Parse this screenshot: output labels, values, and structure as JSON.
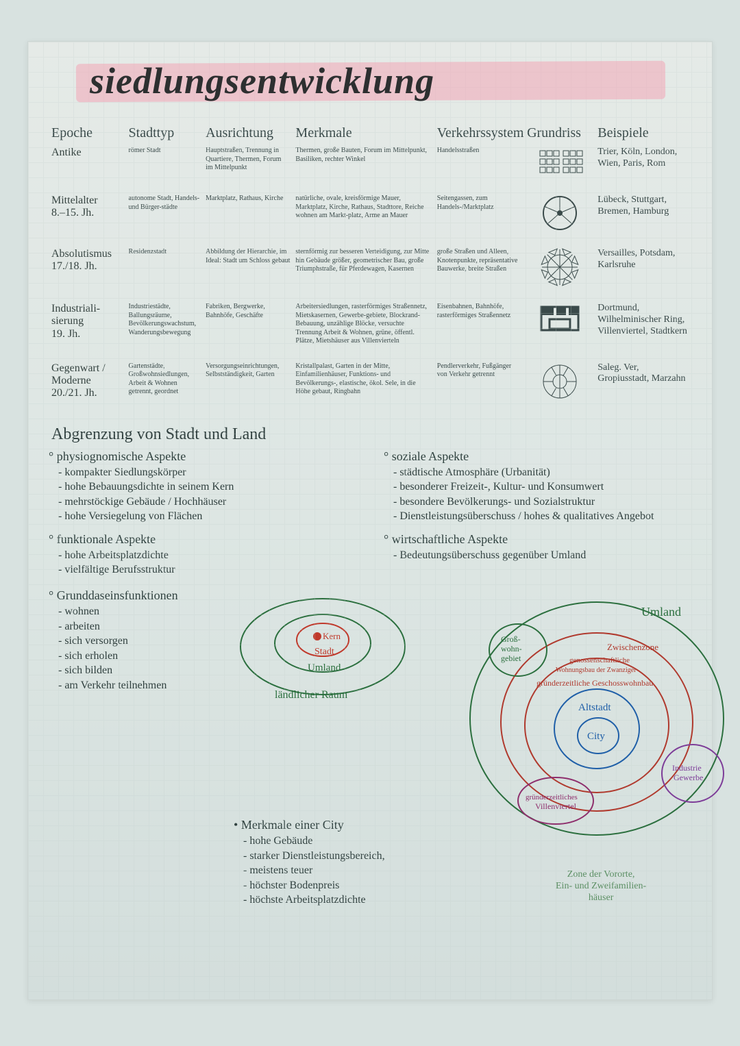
{
  "title": "siedlungsentwicklung",
  "highlight_color": "#f2a6b6",
  "columns": [
    "Epoche",
    "Stadttyp",
    "Ausrichtung",
    "Merkmale",
    "Verkehrssystem",
    "Grundriss",
    "Beispiele"
  ],
  "rows": [
    {
      "epoche": "Antike",
      "stadttyp": "römer Stadt",
      "ausrichtung": "Hauptstraßen, Trennung in Quartiere, Thermen, Forum im Mittelpunkt",
      "merkmale": "Thermen, große Bauten, Forum im Mittelpunkt, Basiliken, rechter Winkel",
      "verkehr": "Handelsstraßen",
      "grundriss_type": "grid",
      "beispiele": "Trier, Köln, London, Wien, Paris, Rom"
    },
    {
      "epoche": "Mittelalter\n8.–15. Jh.",
      "stadttyp": "autonome Stadt, Handels- und Bürger-städte",
      "ausrichtung": "Marktplatz, Rathaus, Kirche",
      "merkmale": "natürliche, ovale, kreisförmige Mauer, Marktplatz, Kirche, Rathaus, Stadttore, Reiche wohnen am Markt-platz, Arme an Mauer",
      "verkehr": "Seitengassen, zum Handels-/Marktplatz",
      "grundriss_type": "radial_wall",
      "beispiele": "Lübeck, Stuttgart, Bremen, Hamburg"
    },
    {
      "epoche": "Absolutismus\n17./18. Jh.",
      "stadttyp": "Residenzstadt",
      "ausrichtung": "Abbildung der Hierarchie, im Ideal: Stadt um Schloss gebaut",
      "merkmale": "sternförmig zur besseren Verteidigung, zur Mitte hin Gebäude größer, geometrischer Bau, große Triumphstraße, für Pferdewagen, Kasernen",
      "verkehr": "große Straßen und Alleen, Knotenpunkte, repräsentative Bauwerke, breite Straßen",
      "grundriss_type": "star",
      "beispiele": "Versailles, Potsdam, Karlsruhe"
    },
    {
      "epoche": "Industriali-\nsierung\n19. Jh.",
      "stadttyp": "Industriestädte, Ballungsräume, Bevölkerungswachstum, Wanderungsbewegung",
      "ausrichtung": "Fabriken, Bergwerke, Bahnhöfe, Geschäfte",
      "merkmale": "Arbeitersiedlungen, rasterförmiges Straßennetz, Mietskasernen, Gewerbe-gebiete, Blockrand-Bebauung, unzählige Blöcke, versuchte Trennung Arbeit & Wohnen, grüne, öffentl. Plätze, Mietshäuser aus Villenvierteln",
      "verkehr": "Eisenbahnen, Bahnhöfe, rasterförmiges Straßennetz",
      "grundriss_type": "block",
      "beispiele": "Dortmund, Wilhelminischer Ring, Villenviertel, Stadtkern"
    },
    {
      "epoche": "Gegenwart /\nModerne\n20./21. Jh.",
      "stadttyp": "Gartenstädte, Großwohnsiedlungen, Arbeit & Wohnen getrennt, geordnet",
      "ausrichtung": "Versorgungseinrichtungen, Selbstständigkeit, Garten",
      "merkmale": "Kristallpalast, Garten in der Mitte, Einfamilienhäuser, Funktions- und Bevölkerungs-, elastische, ökol. Sele, in die Höhe gebaut, Ringbahn",
      "verkehr": "Pendlerverkehr, Fußgänger von Verkehr getrennt",
      "grundriss_type": "garden_city",
      "beispiele": "Saleg. Ver, Gropiusstadt, Marzahn"
    }
  ],
  "section2_title": "Abgrenzung von Stadt und Land",
  "aspekte": {
    "physiognomisch": {
      "title": "physiognomische Aspekte",
      "items": [
        "kompakter Siedlungskörper",
        "hohe Bebauungsdichte in seinem Kern",
        "mehrstöckige Gebäude / Hochhäuser",
        "hohe Versiegelung von Flächen"
      ]
    },
    "funktional": {
      "title": "funktionale Aspekte",
      "items": [
        "hohe Arbeitsplatzdichte",
        "vielfältige Berufsstruktur"
      ]
    },
    "sozial": {
      "title": "soziale Aspekte",
      "items": [
        "städtische Atmosphäre (Urbanität)",
        "besonderer Freizeit-, Kultur- und Konsumwert",
        "besondere Bevölkerungs- und Sozialstruktur",
        "Dienstleistungsüberschuss / hohes & qualitatives Angebot"
      ]
    },
    "wirtschaftlich": {
      "title": "wirtschaftliche Aspekte",
      "items": [
        "Bedeutungsüberschuss gegenüber Umland"
      ]
    }
  },
  "grundfunktionen": {
    "title": "Grunddaseinsfunktionen",
    "items": [
      "wohnen",
      "arbeiten",
      "sich versorgen",
      "sich erholen",
      "sich bilden",
      "am Verkehr teilnehmen"
    ]
  },
  "concentric_small": {
    "kern": "Kern",
    "stadt": "Stadt",
    "umland": "Umland",
    "land": "ländlicher Raum",
    "colors": {
      "kern": "#c0392b",
      "stadt": "#c0392b",
      "umland": "#2b6f3e",
      "land": "#2b6f3e"
    }
  },
  "merkmale_city": {
    "title": "Merkmale einer City",
    "items": [
      "hohe Gebäude",
      "starker Dienstleistungsbereich,",
      "meistens teuer",
      "höchster Bodenpreis",
      "höchste Arbeitsplatzdichte"
    ]
  },
  "ring_model": {
    "labels": {
      "umland": "Umland",
      "gross": "Groß-\nwohn-\ngebiet",
      "zwischen": "Zwischenzone",
      "genossen": "genossenschaftliche",
      "wohnung": "Wohnungsbau der Zwanziger",
      "gruender": "gründerzeitliche Geschosswohnbau",
      "altstadt": "Altstadt",
      "city": "City",
      "industrie": "Industrie\nGewerbe",
      "villen": "gründerzeitliches Villenviertel",
      "vororte": "Zone der Vororte,\nEin- und Zweifamilien-\nhäuser"
    },
    "colors": {
      "umland": "#2b6f3e",
      "zwischen": "#b03a2e",
      "gruender": "#b03a2e",
      "altstadt": "#1f5fa8",
      "city": "#1f5fa8",
      "industrie": "#7d3c98",
      "villen": "#8e2e6c",
      "vororte": "#2b6f3e",
      "gross": "#2b6f3e"
    }
  }
}
